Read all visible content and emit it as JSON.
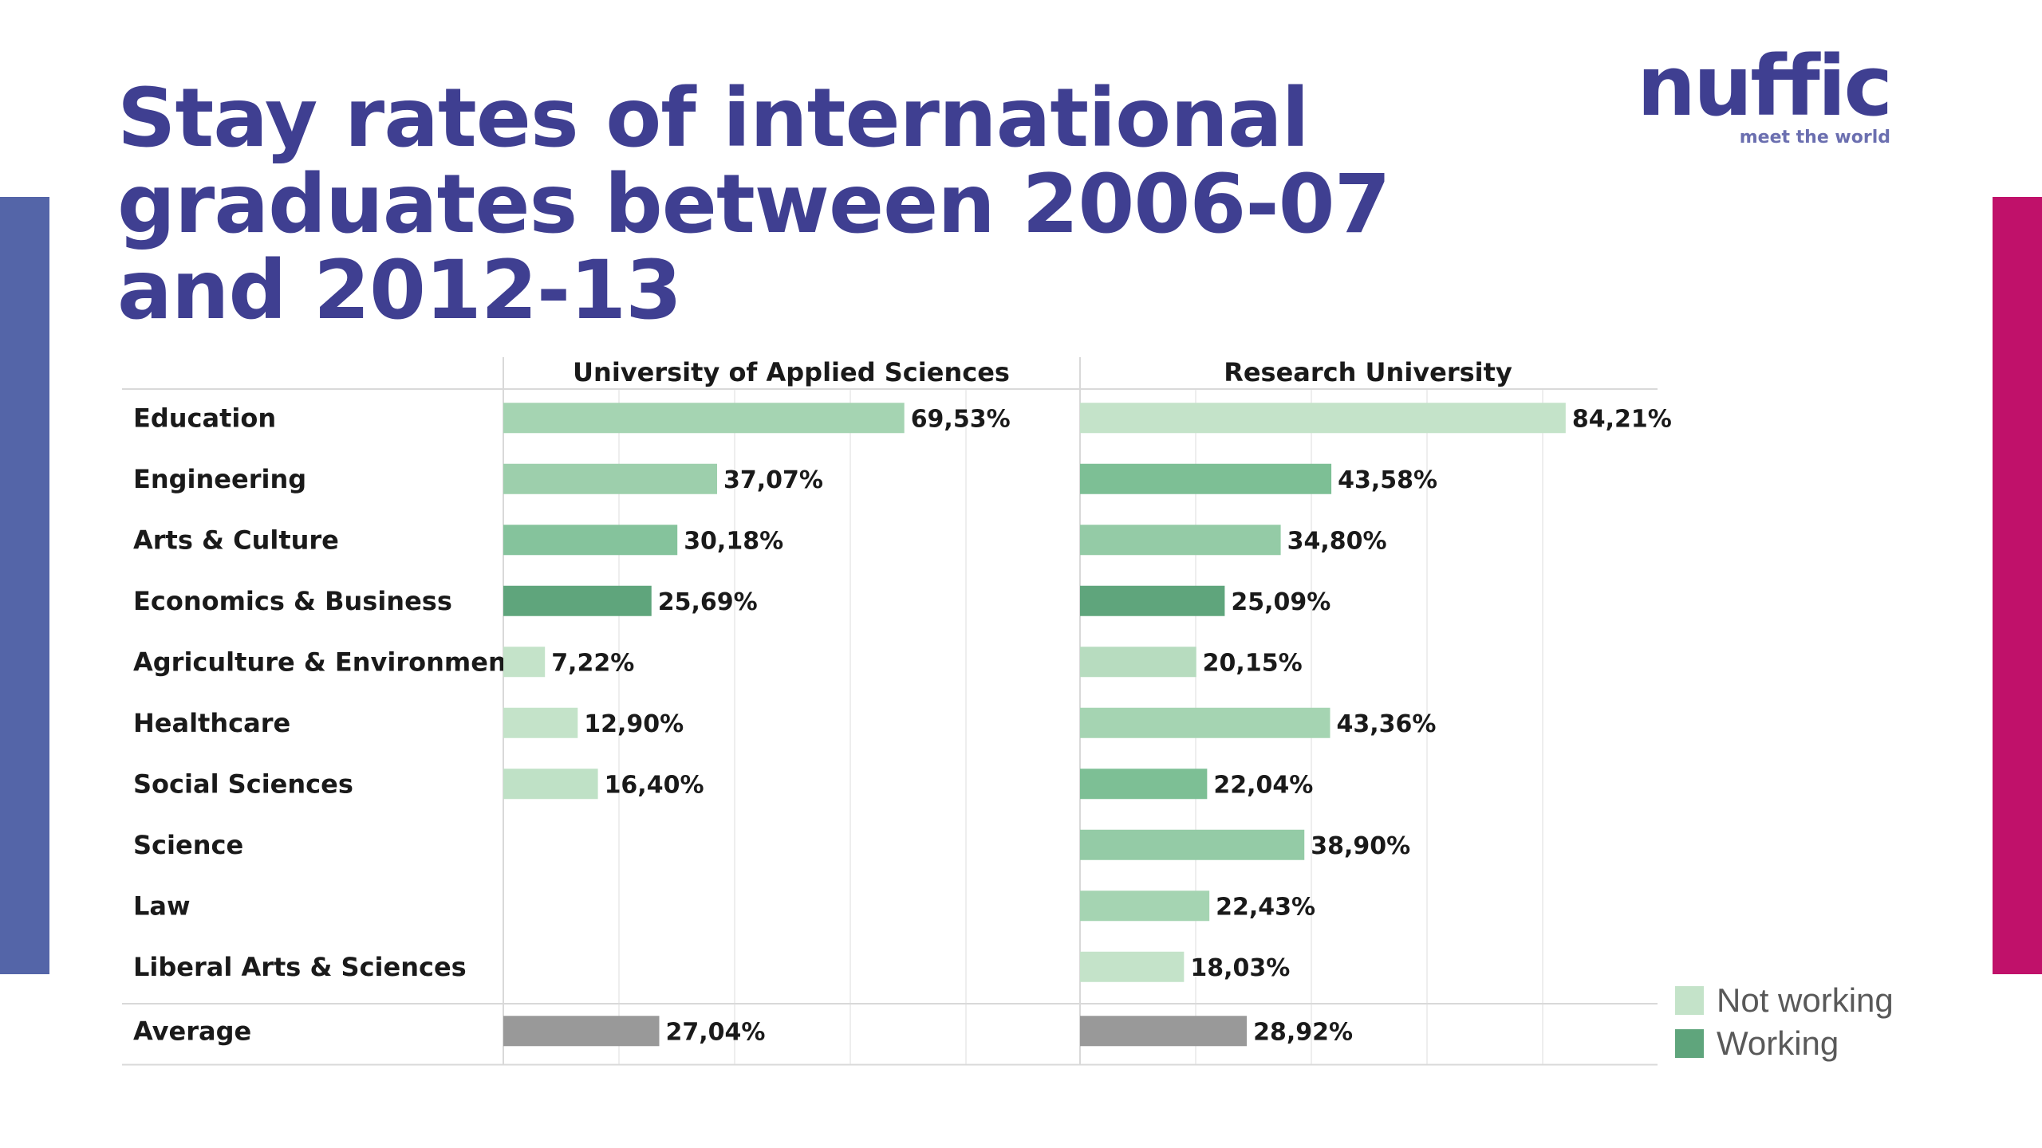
{
  "title": "Stay rates of international graduates between 2006-07 and 2012-13",
  "logo": {
    "word": "nuffic",
    "tagline": "meet the world"
  },
  "colors": {
    "left_bar": "#5465a8",
    "right_bar": "#c0116a",
    "title": "#3f3f91",
    "not_working": "#c4e3c9",
    "working": "#5fa57c",
    "average": "#999999"
  },
  "legend": [
    {
      "label": "Not working",
      "color": "#c4e3c9"
    },
    {
      "label": "Working",
      "color": "#5fa57c"
    }
  ],
  "chart_data": {
    "type": "bar",
    "orientation": "horizontal",
    "categories": [
      "Education",
      "Engineering",
      "Arts & Culture",
      "Economics & Business",
      "Agriculture & Environment",
      "Healthcare",
      "Social Sciences",
      "Science",
      "Law",
      "Liberal Arts & Sciences",
      "Average"
    ],
    "series": [
      {
        "name": "University of Applied Sciences",
        "values": [
          69.53,
          37.07,
          30.18,
          25.69,
          7.22,
          12.9,
          16.4,
          null,
          null,
          null,
          27.04
        ],
        "labels": [
          "69,53%",
          "37,07%",
          "30,18%",
          "25,69%",
          "7,22%",
          "12,90%",
          "16,40%",
          null,
          null,
          null,
          "27,04%"
        ],
        "colors": [
          "#a5d4b2",
          "#9dcfac",
          "#85c39c",
          "#5fa57c",
          "#c4e3c9",
          "#c4e3c9",
          "#bfe1c6",
          null,
          null,
          null,
          "#999999"
        ]
      },
      {
        "name": "Research University",
        "values": [
          84.21,
          43.58,
          34.8,
          25.09,
          20.15,
          43.36,
          22.04,
          38.9,
          22.43,
          18.03,
          28.92
        ],
        "labels": [
          "84,21%",
          "43,58%",
          "34,80%",
          "25,09%",
          "20,15%",
          "43,36%",
          "22,04%",
          "38,90%",
          "22,43%",
          "18,03%",
          "28,92%"
        ],
        "colors": [
          "#c4e3c9",
          "#7dbf95",
          "#94cba6",
          "#5fa57c",
          "#b7dcbf",
          "#a5d4b2",
          "#7dbf95",
          "#94cba6",
          "#a5d4b2",
          "#c4e3c9",
          "#999999"
        ]
      }
    ],
    "xlim": [
      0,
      100
    ],
    "grid": true,
    "legend_position": "bottom-right"
  }
}
